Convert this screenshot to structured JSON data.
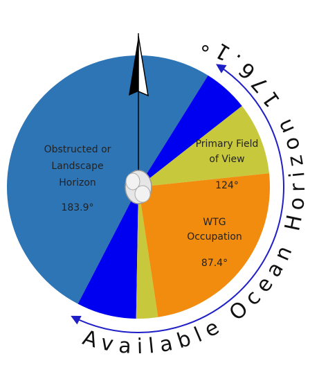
{
  "sectors": [
    {
      "label_lines": [
        "Obstructed or",
        "Landscape",
        "Horizon"
      ],
      "angle": "183.9°"
    },
    {
      "label_lines": [
        "Primary Field",
        "of View"
      ],
      "angle": "124°"
    },
    {
      "label_lines": [
        "WTG",
        "Occupation"
      ],
      "angle": "87.4°"
    }
  ],
  "arc_label": "Available Ocean Horizon 176.1°"
}
